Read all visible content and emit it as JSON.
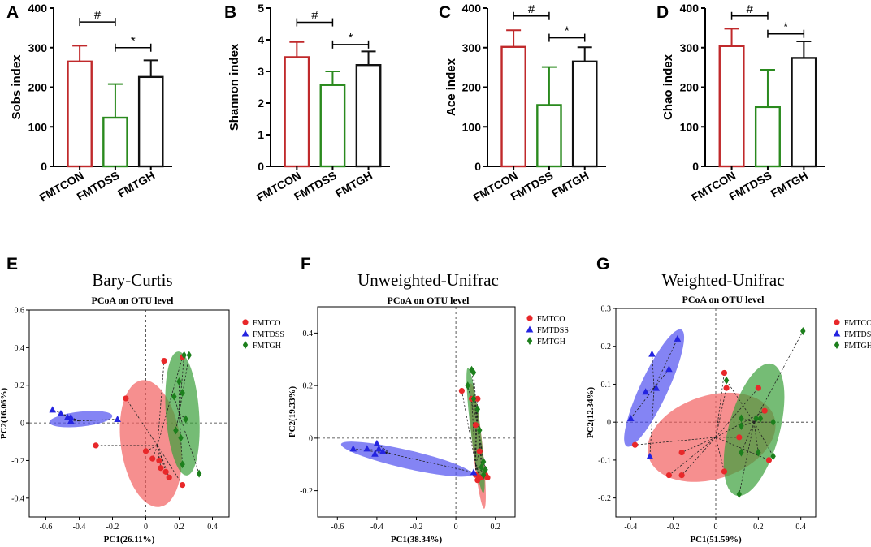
{
  "figure": {
    "description_visible": false
  },
  "colors": {
    "con": "#c0292b",
    "dss": "#2a8a1e",
    "gh": "#111111",
    "red": "#e8282a",
    "blue": "#2424e0",
    "green": "#1c7f1c",
    "red_fill": "#f26060",
    "blue_fill": "#5050f0",
    "green_fill": "#3aa03a"
  },
  "chart_data": [
    {
      "type": "bar",
      "panel": "A",
      "ylabel": "Sobs index",
      "ylim": [
        0,
        400
      ],
      "yticks": [
        0,
        100,
        200,
        300,
        400
      ],
      "categories": [
        "FMTCON",
        "FMTDSS",
        "FMTGH"
      ],
      "values": [
        265,
        123,
        226
      ],
      "errors": [
        40,
        85,
        42
      ],
      "sig": [
        {
          "label": "#",
          "from": 0,
          "to": 1,
          "level": 365
        },
        {
          "label": "*",
          "from": 1,
          "to": 2,
          "level": 300
        }
      ]
    },
    {
      "type": "bar",
      "panel": "B",
      "ylabel": "Shannon index",
      "ylim": [
        0,
        5
      ],
      "yticks": [
        0,
        1,
        2,
        3,
        4,
        5
      ],
      "categories": [
        "FMTCON",
        "FMTDSS",
        "FMTGH"
      ],
      "values": [
        3.45,
        2.57,
        3.2
      ],
      "errors": [
        0.48,
        0.43,
        0.43
      ],
      "sig": [
        {
          "label": "#",
          "from": 0,
          "to": 1,
          "level": 4.55
        },
        {
          "label": "*",
          "from": 1,
          "to": 2,
          "level": 3.85
        }
      ]
    },
    {
      "type": "bar",
      "panel": "C",
      "ylabel": "Ace index",
      "ylim": [
        0,
        400
      ],
      "yticks": [
        0,
        100,
        200,
        300,
        400
      ],
      "categories": [
        "FMTCON",
        "FMTDSS",
        "FMTGH"
      ],
      "values": [
        302,
        155,
        265
      ],
      "errors": [
        42,
        96,
        36
      ],
      "sig": [
        {
          "label": "#",
          "from": 0,
          "to": 1,
          "level": 380
        },
        {
          "label": "*",
          "from": 1,
          "to": 2,
          "level": 325
        }
      ]
    },
    {
      "type": "bar",
      "panel": "D",
      "ylabel": "Chao index",
      "ylim": [
        0,
        400
      ],
      "yticks": [
        0,
        100,
        200,
        300,
        400
      ],
      "categories": [
        "FMTCON",
        "FMTDSS",
        "FMTGH"
      ],
      "values": [
        304,
        150,
        274
      ],
      "errors": [
        44,
        94,
        42
      ],
      "sig": [
        {
          "label": "#",
          "from": 0,
          "to": 1,
          "level": 380
        },
        {
          "label": "*",
          "from": 1,
          "to": 2,
          "level": 335
        }
      ]
    },
    {
      "type": "scatter",
      "panel": "E",
      "title": "Bary-Curtis",
      "subtitle": "PCoA on OTU level",
      "xlabel": "PC1(26.11%)",
      "ylabel": "PC2(16.06%)",
      "xlim": [
        -0.7,
        0.5
      ],
      "ylim": [
        -0.5,
        0.6
      ],
      "xticks": [
        -0.6,
        -0.4,
        -0.2,
        0,
        0.2,
        0.4
      ],
      "yticks": [
        -0.4,
        -0.2,
        0,
        0.2,
        0.4,
        0.6
      ],
      "xtick_labels": [
        "-0.6",
        "-0.4",
        "-0.2",
        "0",
        "0.2",
        "0.4"
      ],
      "ytick_labels": [
        "-0.4",
        "-0.2",
        "0",
        "0.2",
        "0.4",
        "0.6"
      ],
      "legend": [
        "FMTCO",
        "FMTDSS",
        "FMTGH"
      ],
      "groups": [
        {
          "name": "FMTCO",
          "marker": "circle",
          "centroid": [
            0.07,
            -0.12
          ],
          "ellipse": {
            "cx": 0.03,
            "cy": -0.11,
            "rx": 0.18,
            "ry": 0.34,
            "angle": -8
          },
          "points": [
            [
              -0.12,
              0.13
            ],
            [
              0.11,
              0.33
            ],
            [
              0.22,
              0.35
            ],
            [
              -0.3,
              -0.12
            ],
            [
              0.0,
              -0.15
            ],
            [
              0.04,
              -0.19
            ],
            [
              0.08,
              -0.2
            ],
            [
              0.12,
              -0.26
            ],
            [
              0.14,
              -0.29
            ],
            [
              0.22,
              -0.33
            ],
            [
              0.09,
              -0.24
            ]
          ]
        },
        {
          "name": "FMTDSS",
          "marker": "triangle",
          "centroid": [
            -0.4,
            0.01
          ],
          "ellipse": {
            "cx": -0.39,
            "cy": 0.02,
            "rx": 0.19,
            "ry": 0.04,
            "angle": -6
          },
          "points": [
            [
              -0.56,
              0.07
            ],
            [
              -0.51,
              0.05
            ],
            [
              -0.47,
              0.03
            ],
            [
              -0.45,
              0.01
            ],
            [
              -0.45,
              0.03
            ],
            [
              -0.17,
              0.02
            ]
          ]
        },
        {
          "name": "FMTGH",
          "marker": "diamond",
          "centroid": [
            0.2,
            0.05
          ],
          "ellipse": {
            "cx": 0.22,
            "cy": 0.05,
            "rx": 0.1,
            "ry": 0.33,
            "angle": -4
          },
          "points": [
            [
              0.23,
              0.36
            ],
            [
              0.26,
              0.36
            ],
            [
              0.2,
              0.22
            ],
            [
              0.22,
              0.16
            ],
            [
              0.17,
              0.14
            ],
            [
              0.24,
              0.02
            ],
            [
              0.21,
              -0.08
            ],
            [
              0.22,
              -0.22
            ],
            [
              0.32,
              -0.27
            ],
            [
              0.18,
              -0.04
            ]
          ]
        }
      ]
    },
    {
      "type": "scatter",
      "panel": "F",
      "title": "Unweighted-Unifrac",
      "subtitle": "PCoA on OTU level",
      "xlabel": "PC1(38.34%)",
      "ylabel": "PC2(19.33%)",
      "xlim": [
        -0.7,
        0.3
      ],
      "ylim": [
        -0.3,
        0.5
      ],
      "xticks": [
        -0.6,
        -0.4,
        -0.2,
        0,
        0.2
      ],
      "yticks": [
        -0.2,
        0,
        0.2,
        0.4
      ],
      "xtick_labels": [
        "-0.6",
        "-0.4",
        "-0.2",
        "0",
        "0.2"
      ],
      "ytick_labels": [
        "-0.2",
        "0",
        "0.2",
        "0.4"
      ],
      "legend": [
        "FMTCO",
        "FMTDSS",
        "FMTGH"
      ],
      "groups": [
        {
          "name": "FMTCO",
          "marker": "circle",
          "centroid": [
            0.1,
            -0.1
          ],
          "ellipse": {
            "cx": 0.11,
            "cy": -0.03,
            "rx": 0.025,
            "ry": 0.24,
            "angle": -6
          },
          "points": [
            [
              0.03,
              0.18
            ],
            [
              0.08,
              0.15
            ],
            [
              0.11,
              0.15
            ],
            [
              0.1,
              0.05
            ],
            [
              0.12,
              -0.05
            ],
            [
              0.1,
              -0.14
            ],
            [
              0.12,
              -0.15
            ],
            [
              0.13,
              -0.15
            ],
            [
              0.15,
              -0.14
            ],
            [
              0.11,
              -0.16
            ],
            [
              0.16,
              -0.15
            ]
          ]
        },
        {
          "name": "FMTDSS",
          "marker": "triangle",
          "centroid": [
            -0.33,
            -0.06
          ],
          "ellipse": {
            "cx": -0.25,
            "cy": -0.08,
            "rx": 0.34,
            "ry": 0.035,
            "angle": 13
          },
          "points": [
            [
              -0.52,
              -0.04
            ],
            [
              -0.45,
              -0.04
            ],
            [
              -0.4,
              -0.02
            ],
            [
              -0.39,
              -0.04
            ],
            [
              -0.37,
              -0.05
            ],
            [
              -0.41,
              -0.06
            ],
            [
              0.09,
              -0.13
            ]
          ]
        },
        {
          "name": "FMTGH",
          "marker": "diamond",
          "centroid": [
            0.11,
            0.05
          ],
          "ellipse": {
            "cx": 0.1,
            "cy": 0.03,
            "rx": 0.025,
            "ry": 0.24,
            "angle": -7
          },
          "points": [
            [
              0.08,
              0.26
            ],
            [
              0.09,
              0.25
            ],
            [
              0.06,
              0.2
            ],
            [
              0.09,
              0.15
            ],
            [
              0.11,
              0.11
            ],
            [
              0.12,
              0.03
            ],
            [
              0.14,
              -0.09
            ],
            [
              0.15,
              -0.12
            ],
            [
              0.13,
              -0.11
            ],
            [
              0.14,
              -0.14
            ]
          ]
        }
      ]
    },
    {
      "type": "scatter",
      "panel": "G",
      "title": "Weighted-Unifrac",
      "subtitle": "PCoA on OTU level",
      "xlabel": "PC1(51.59%)",
      "ylabel": "PC2(12.34%)",
      "xlim": [
        -0.47,
        0.47
      ],
      "ylim": [
        -0.25,
        0.3
      ],
      "xticks": [
        -0.4,
        -0.2,
        0,
        0.2,
        0.4
      ],
      "yticks": [
        -0.2,
        -0.1,
        0,
        0.1,
        0.2,
        0.3
      ],
      "xtick_labels": [
        "-0.4",
        "-0.2",
        "0",
        "0.2",
        "0.4"
      ],
      "ytick_labels": [
        "-0.2",
        "-0.1",
        "0",
        "0.1",
        "0.2",
        "0.3"
      ],
      "legend": [
        "FMTCO",
        "FMTDSS",
        "FMTGH"
      ],
      "groups": [
        {
          "name": "FMTCO",
          "marker": "circle",
          "centroid": [
            0.0,
            -0.04
          ],
          "ellipse": {
            "cx": -0.02,
            "cy": -0.04,
            "rx": 0.31,
            "ry": 0.11,
            "angle": -18
          },
          "points": [
            [
              -0.38,
              -0.06
            ],
            [
              -0.16,
              -0.08
            ],
            [
              -0.16,
              -0.14
            ],
            [
              -0.22,
              -0.14
            ],
            [
              0.04,
              0.13
            ],
            [
              0.05,
              0.09
            ],
            [
              0.2,
              0.09
            ],
            [
              0.23,
              0.03
            ],
            [
              0.11,
              -0.04
            ],
            [
              0.04,
              -0.13
            ],
            [
              0.25,
              -0.1
            ]
          ]
        },
        {
          "name": "FMTDSS",
          "marker": "triangle",
          "centroid": [
            -0.29,
            0.09
          ],
          "ellipse": {
            "cx": -0.29,
            "cy": 0.09,
            "rx": 0.065,
            "ry": 0.17,
            "angle": 25
          },
          "points": [
            [
              -0.4,
              0.01
            ],
            [
              -0.33,
              0.08
            ],
            [
              -0.3,
              0.18
            ],
            [
              -0.18,
              0.22
            ],
            [
              -0.22,
              0.14
            ],
            [
              -0.28,
              0.09
            ],
            [
              -0.31,
              -0.09
            ]
          ]
        },
        {
          "name": "FMTGH",
          "marker": "diamond",
          "centroid": [
            0.18,
            0.0
          ],
          "ellipse": {
            "cx": 0.18,
            "cy": -0.02,
            "rx": 0.12,
            "ry": 0.18,
            "angle": 15
          },
          "points": [
            [
              0.41,
              0.24
            ],
            [
              0.05,
              0.11
            ],
            [
              0.12,
              0.01
            ],
            [
              0.12,
              -0.01
            ],
            [
              0.19,
              0.01
            ],
            [
              0.21,
              0.01
            ],
            [
              0.27,
              0.0
            ],
            [
              0.12,
              -0.08
            ],
            [
              0.27,
              -0.09
            ],
            [
              0.2,
              -0.08
            ],
            [
              0.11,
              -0.19
            ]
          ]
        }
      ]
    }
  ]
}
